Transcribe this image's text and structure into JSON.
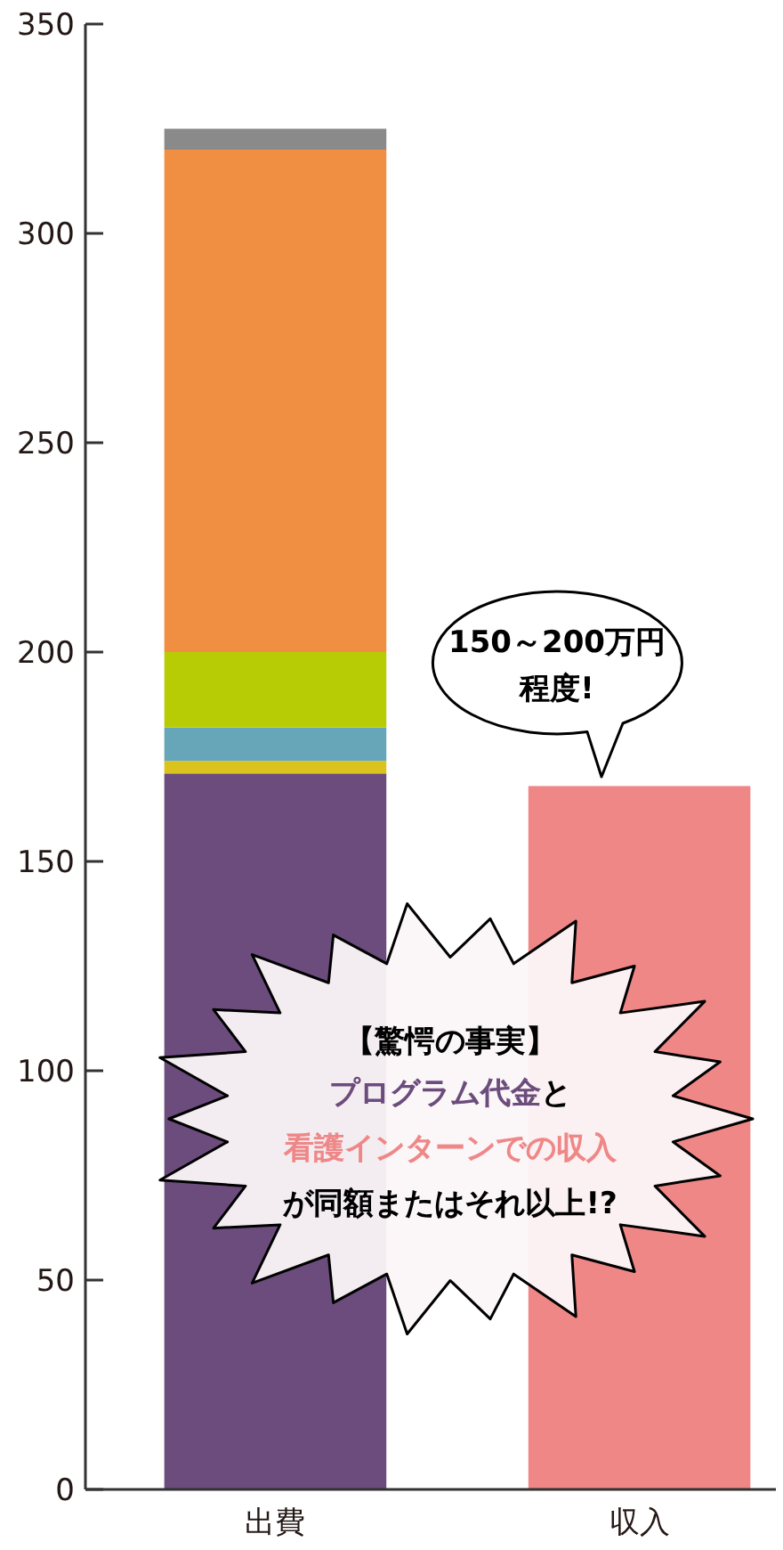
{
  "chart_data": {
    "type": "bar",
    "stacked": true,
    "categories": [
      "出費",
      "収入"
    ],
    "series": [
      {
        "color": "#6b4c7c",
        "values": [
          171,
          null
        ]
      },
      {
        "color": "#dcc21c",
        "values": [
          3,
          null
        ]
      },
      {
        "color": "#67a6b8",
        "values": [
          8,
          null
        ]
      },
      {
        "color": "#b8cc06",
        "values": [
          18,
          null
        ]
      },
      {
        "color": "#f08f42",
        "values": [
          120,
          null
        ]
      },
      {
        "color": "#8a8a8a",
        "values": [
          5,
          null
        ]
      },
      {
        "color": "#ef8787",
        "values": [
          null,
          168
        ]
      }
    ],
    "ylim": [
      0,
      350
    ],
    "yticks": [
      0,
      50,
      100,
      150,
      200,
      250,
      300,
      350
    ],
    "grid": false,
    "annotations": [
      "150～200万円",
      "程度!",
      "【驚愕の事実】",
      "プログラム代金",
      "と",
      "看護インターンでの収入",
      "が同額またはそれ以上!?"
    ]
  }
}
